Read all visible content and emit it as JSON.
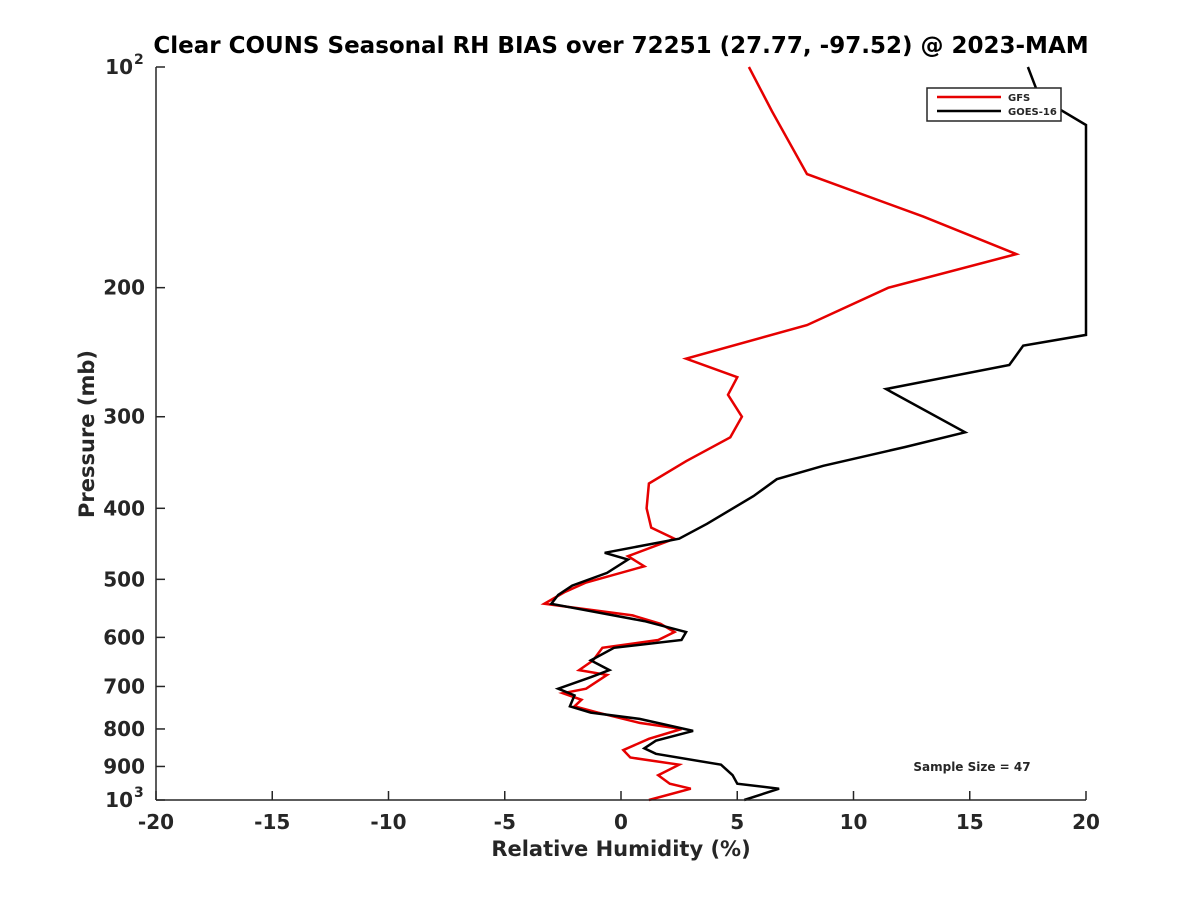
{
  "chart_data": {
    "type": "line",
    "title": "Clear COUNS Seasonal RH BIAS over 72251 (27.77, -97.52) @ 2023-MAM",
    "xlabel": "Relative Humidity (%)",
    "ylabel": "Pressure (mb)",
    "xlim": [
      -20,
      20
    ],
    "ylim": [
      100,
      1000
    ],
    "y_scale": "log",
    "y_reversed": true,
    "grid": false,
    "x_ticks": [
      {
        "value": -20,
        "label": "-20"
      },
      {
        "value": -15,
        "label": "-15"
      },
      {
        "value": -10,
        "label": "-10"
      },
      {
        "value": -5,
        "label": "-5"
      },
      {
        "value": 0,
        "label": "0"
      },
      {
        "value": 5,
        "label": "5"
      },
      {
        "value": 10,
        "label": "10"
      },
      {
        "value": 15,
        "label": "15"
      },
      {
        "value": 20,
        "label": "20"
      }
    ],
    "y_ticks": [
      {
        "value": 100,
        "label": "10",
        "sup": "2"
      },
      {
        "value": 200,
        "label": "200",
        "sup": ""
      },
      {
        "value": 300,
        "label": "300",
        "sup": ""
      },
      {
        "value": 400,
        "label": "400",
        "sup": ""
      },
      {
        "value": 500,
        "label": "500",
        "sup": ""
      },
      {
        "value": 600,
        "label": "600",
        "sup": ""
      },
      {
        "value": 700,
        "label": "700",
        "sup": ""
      },
      {
        "value": 800,
        "label": "800",
        "sup": ""
      },
      {
        "value": 900,
        "label": "900",
        "sup": ""
      },
      {
        "value": 1000,
        "label": "10",
        "sup": "3"
      }
    ],
    "legend_position": "top-right",
    "annotation": "Sample Size = 47",
    "series": [
      {
        "name": "GFS",
        "color": "#e60000",
        "points": [
          [
            5.5,
            100
          ],
          [
            6.5,
            115
          ],
          [
            8.0,
            140
          ],
          [
            13.0,
            160
          ],
          [
            17.0,
            180
          ],
          [
            11.5,
            200
          ],
          [
            8.0,
            225
          ],
          [
            2.8,
            250
          ],
          [
            5.0,
            265
          ],
          [
            4.6,
            280
          ],
          [
            5.2,
            300
          ],
          [
            4.7,
            320
          ],
          [
            2.8,
            345
          ],
          [
            1.2,
            370
          ],
          [
            1.1,
            400
          ],
          [
            1.3,
            425
          ],
          [
            2.3,
            440
          ],
          [
            0.3,
            465
          ],
          [
            1.0,
            480
          ],
          [
            -1.5,
            505
          ],
          [
            -2.4,
            520
          ],
          [
            -3.3,
            540
          ],
          [
            0.5,
            560
          ],
          [
            1.7,
            575
          ],
          [
            2.3,
            590
          ],
          [
            1.6,
            605
          ],
          [
            -0.8,
            620
          ],
          [
            -1.2,
            645
          ],
          [
            -1.8,
            665
          ],
          [
            -0.6,
            675
          ],
          [
            -1.5,
            705
          ],
          [
            -2.5,
            715
          ],
          [
            -1.7,
            730
          ],
          [
            -2.0,
            745
          ],
          [
            -1.0,
            760
          ],
          [
            0.8,
            785
          ],
          [
            2.6,
            800
          ],
          [
            1.2,
            825
          ],
          [
            0.1,
            855
          ],
          [
            0.4,
            875
          ],
          [
            2.5,
            895
          ],
          [
            1.6,
            925
          ],
          [
            2.1,
            950
          ],
          [
            3.0,
            965
          ],
          [
            1.2,
            1000
          ]
        ]
      },
      {
        "name": "GOES-16",
        "color": "#000000",
        "points": [
          [
            17.5,
            100
          ],
          [
            18.0,
            110
          ],
          [
            20.0,
            120
          ],
          [
            20.0,
            232
          ],
          [
            17.3,
            240
          ],
          [
            16.7,
            255
          ],
          [
            11.4,
            275
          ],
          [
            14.8,
            315
          ],
          [
            12.2,
            330
          ],
          [
            8.7,
            350
          ],
          [
            6.7,
            365
          ],
          [
            5.7,
            385
          ],
          [
            3.7,
            420
          ],
          [
            2.5,
            440
          ],
          [
            -0.7,
            460
          ],
          [
            0.3,
            470
          ],
          [
            -0.6,
            490
          ],
          [
            -2.1,
            510
          ],
          [
            -2.7,
            525
          ],
          [
            -3.0,
            540
          ],
          [
            1.0,
            570
          ],
          [
            2.8,
            590
          ],
          [
            2.6,
            605
          ],
          [
            -0.3,
            620
          ],
          [
            -1.3,
            645
          ],
          [
            -0.5,
            665
          ],
          [
            -1.3,
            680
          ],
          [
            -2.7,
            705
          ],
          [
            -2.0,
            720
          ],
          [
            -2.2,
            745
          ],
          [
            -1.3,
            760
          ],
          [
            0.8,
            775
          ],
          [
            3.1,
            805
          ],
          [
            1.5,
            830
          ],
          [
            1.0,
            850
          ],
          [
            1.5,
            865
          ],
          [
            4.3,
            895
          ],
          [
            4.8,
            925
          ],
          [
            5.0,
            950
          ],
          [
            6.8,
            965
          ],
          [
            5.3,
            1000
          ]
        ]
      }
    ]
  }
}
